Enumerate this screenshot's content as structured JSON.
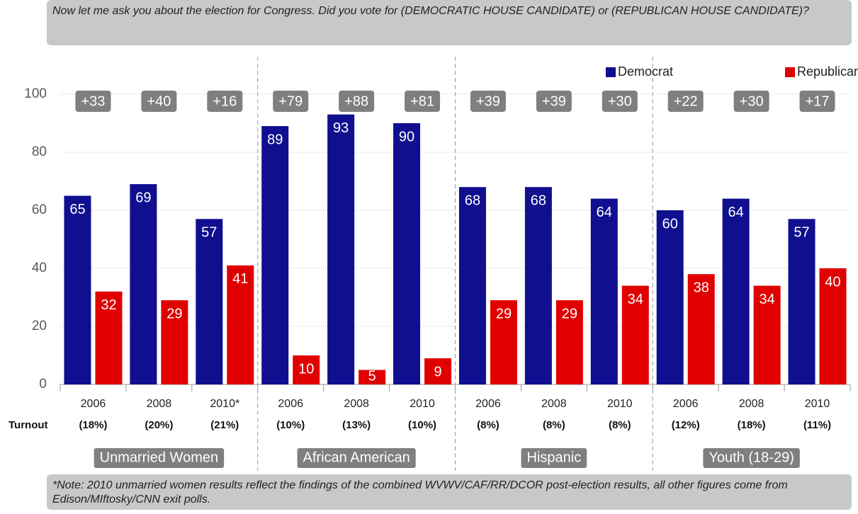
{
  "question": "Now let me ask you about the election for Congress. Did you vote for (DEMOCRATIC HOUSE CANDIDATE) or (REPUBLICAN HOUSE CANDIDATE)?",
  "note": "*Note: 2010 unmarried women results reflect the findings of the combined WVWV/CAF/RR/DCOR post-election results, all other figures come from Edison/MIftosky/CNN exit polls.",
  "chart_data": {
    "type": "bar",
    "categories": [
      "2006",
      "2008",
      "2010*",
      "2006",
      "2008",
      "2010",
      "2006",
      "2008",
      "2010",
      "2006",
      "2008",
      "2010"
    ],
    "turnout_label": "Turnout",
    "turnout": [
      "(18%)",
      "(20%)",
      "(21%)",
      "(10%)",
      "(13%)",
      "(10%)",
      "(8%)",
      "(8%)",
      "(8%)",
      "(12%)",
      "(18%)",
      "(11%)"
    ],
    "margins": [
      "+33",
      "+40",
      "+16",
      "+79",
      "+88",
      "+81",
      "+39",
      "+39",
      "+30",
      "+22",
      "+30",
      "+17"
    ],
    "groups": [
      "Unmarried Women",
      "African American",
      "Hispanic",
      "Youth (18-29)"
    ],
    "series": [
      {
        "name": "Democrat",
        "color": "#0f0f8f",
        "values": [
          65,
          69,
          57,
          89,
          93,
          90,
          68,
          68,
          64,
          60,
          64,
          57
        ]
      },
      {
        "name": "Republican",
        "color": "#e00000",
        "values": [
          32,
          29,
          41,
          10,
          5,
          9,
          29,
          29,
          34,
          38,
          34,
          40
        ]
      }
    ],
    "ylim": [
      0,
      100
    ],
    "yticks": [
      0,
      20,
      40,
      60,
      80,
      100
    ],
    "grid": true,
    "legend": "top-right"
  }
}
